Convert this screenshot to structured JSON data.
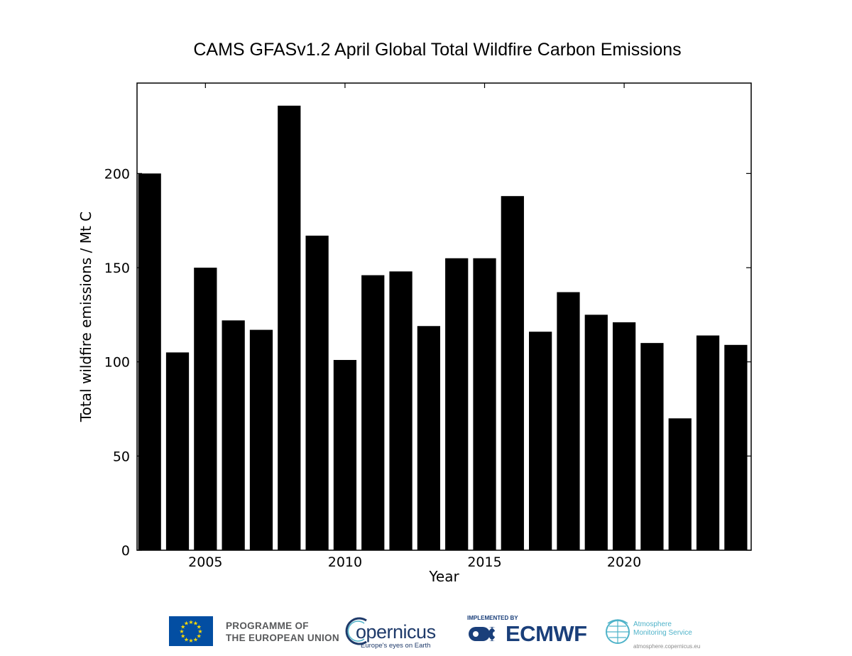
{
  "chart_data": {
    "type": "bar",
    "title": "CAMS GFASv1.2 April Global Total Wildfire Carbon Emissions",
    "xlabel": "Year",
    "ylabel": "Total wildfire emissions / Mt C",
    "x": [
      2003,
      2004,
      2005,
      2006,
      2007,
      2008,
      2009,
      2010,
      2011,
      2012,
      2013,
      2014,
      2015,
      2016,
      2017,
      2018,
      2019,
      2020,
      2021,
      2022,
      2023,
      2024
    ],
    "values": [
      200,
      105,
      150,
      122,
      117,
      236,
      167,
      101,
      146,
      148,
      119,
      155,
      155,
      188,
      116,
      137,
      125,
      121,
      110,
      70,
      114,
      109
    ],
    "xlim": [
      2002.55,
      2024.55
    ],
    "ylim": [
      0,
      248
    ],
    "xticks": [
      "2005",
      "2010",
      "2015",
      "2020"
    ],
    "yticks": [
      "0",
      "50",
      "100",
      "150",
      "200"
    ],
    "bar_color": "#000000",
    "grid": false
  },
  "footer": {
    "eu_programme_line1": "PROGRAMME OF",
    "eu_programme_line2": "THE EUROPEAN UNION",
    "copernicus_word": "opernicus",
    "copernicus_tagline": "Europe's eyes on Earth",
    "ecmwf_implemented": "IMPLEMENTED BY",
    "ecmwf_name": "ECMWF",
    "ams_line1": "Atmosphere",
    "ams_line2": "Monitoring Service",
    "ams_url": "atmosphere.copernicus.eu",
    "colors": {
      "eu_blue": "#034ea2",
      "eu_yellow": "#ffdd00",
      "copernicus_navy": "#1e3a6a",
      "ecmwf_blue": "#1a3f7a",
      "cams_teal": "#4fb3c9"
    }
  }
}
